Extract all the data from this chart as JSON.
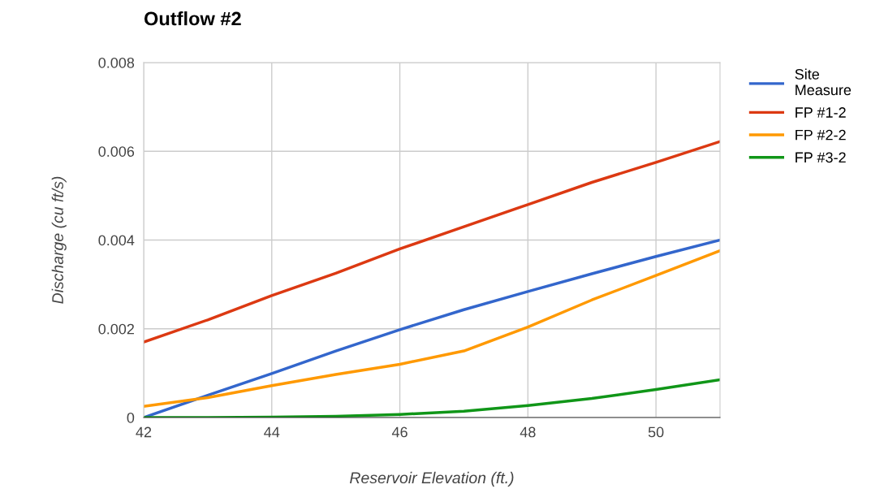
{
  "chart_data": {
    "type": "line",
    "title": "Outflow #2",
    "xlabel": "Reservoir Elevation (ft.)",
    "ylabel": "Discharge (cu ft/s)",
    "x": [
      42,
      43,
      44,
      45,
      46,
      47,
      48,
      49,
      50,
      51
    ],
    "series": [
      {
        "name": "Site Measure",
        "color": "#3366cc",
        "values": [
          0,
          0.0005,
          0.00099,
          0.0015,
          0.00198,
          0.00243,
          0.00284,
          0.00324,
          0.00363,
          0.004
        ]
      },
      {
        "name": "FP #1-2",
        "color": "#dc3912",
        "values": [
          0.0017,
          0.0022,
          0.00275,
          0.00325,
          0.0038,
          0.0043,
          0.0048,
          0.0053,
          0.00575,
          0.00622
        ]
      },
      {
        "name": "FP #2-2",
        "color": "#ff9900",
        "values": [
          0.00025,
          0.00045,
          0.00072,
          0.00097,
          0.0012,
          0.0015,
          0.00204,
          0.00265,
          0.0032,
          0.00376
        ]
      },
      {
        "name": "FP #3-2",
        "color": "#109618",
        "values": [
          0,
          0,
          1e-05,
          3e-05,
          7e-05,
          0.00014,
          0.00027,
          0.00043,
          0.00063,
          0.00085
        ]
      }
    ],
    "xlim": [
      42,
      51
    ],
    "xticks": [
      42,
      44,
      46,
      48,
      50
    ],
    "ylim": [
      0,
      0.008
    ],
    "yticks": [
      {
        "value": 0,
        "label": "0"
      },
      0.002,
      0.004,
      0.006,
      0.008
    ],
    "grid": true,
    "legend": "top right"
  }
}
